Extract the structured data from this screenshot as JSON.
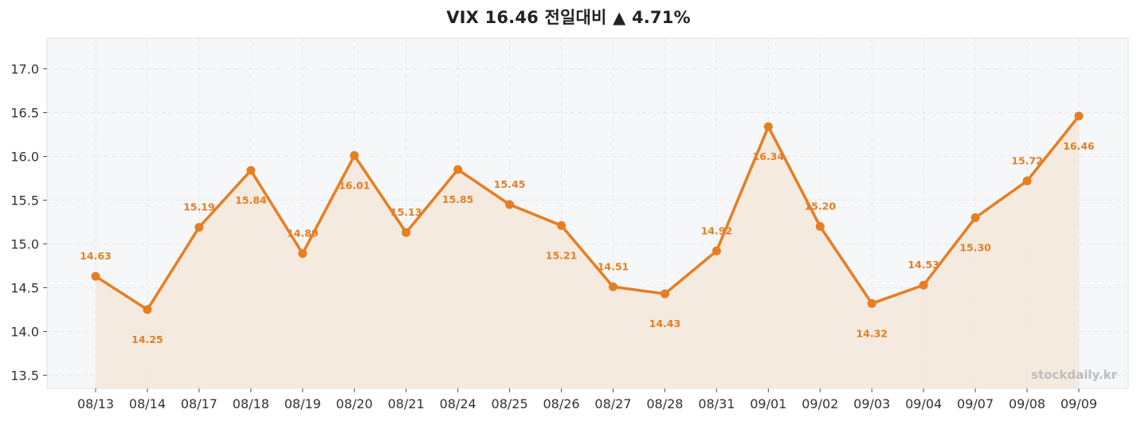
{
  "chart_data": {
    "type": "line",
    "title": "VIX 16.46 전일대비 ▲ 4.71%",
    "categories": [
      "08/13",
      "08/14",
      "08/17",
      "08/18",
      "08/19",
      "08/20",
      "08/21",
      "08/24",
      "08/25",
      "08/26",
      "08/27",
      "08/28",
      "08/31",
      "09/01",
      "09/02",
      "09/03",
      "09/04",
      "09/07",
      "09/08",
      "09/09"
    ],
    "values": [
      14.63,
      14.25,
      15.19,
      15.84,
      14.89,
      16.01,
      15.13,
      15.85,
      15.45,
      15.21,
      14.51,
      14.43,
      14.92,
      16.34,
      15.2,
      14.32,
      14.53,
      15.3,
      15.72,
      16.46
    ],
    "data_labels": [
      "14.63",
      "14.25",
      "15.19",
      "15.84",
      "14.89",
      "16.01",
      "15.13",
      "15.85",
      "15.45",
      "15.21",
      "14.51",
      "14.43",
      "14.92",
      "16.34",
      "15.20",
      "14.32",
      "14.53",
      "15.30",
      "15.72",
      "16.46"
    ],
    "label_positions": [
      "above",
      "below",
      "above",
      "below",
      "above",
      "below",
      "above",
      "below",
      "above",
      "below",
      "above",
      "below",
      "above",
      "below",
      "above",
      "below",
      "above",
      "below",
      "above",
      "below"
    ],
    "ylim": [
      13.35,
      17.35
    ],
    "yticks": [
      "13.5",
      "14.0",
      "14.5",
      "15.0",
      "15.5",
      "16.0",
      "16.5",
      "17.0"
    ],
    "xlabel": "",
    "ylabel": "",
    "grid": true,
    "filled_area": true,
    "watermark": "stockdaily.kr",
    "colors": {
      "line": "#e67e22",
      "fill": "#f5e8dc",
      "plot_bg": "#f6f7f9",
      "grid": "#e4e6ea",
      "frame": "#dcdfe4"
    }
  }
}
